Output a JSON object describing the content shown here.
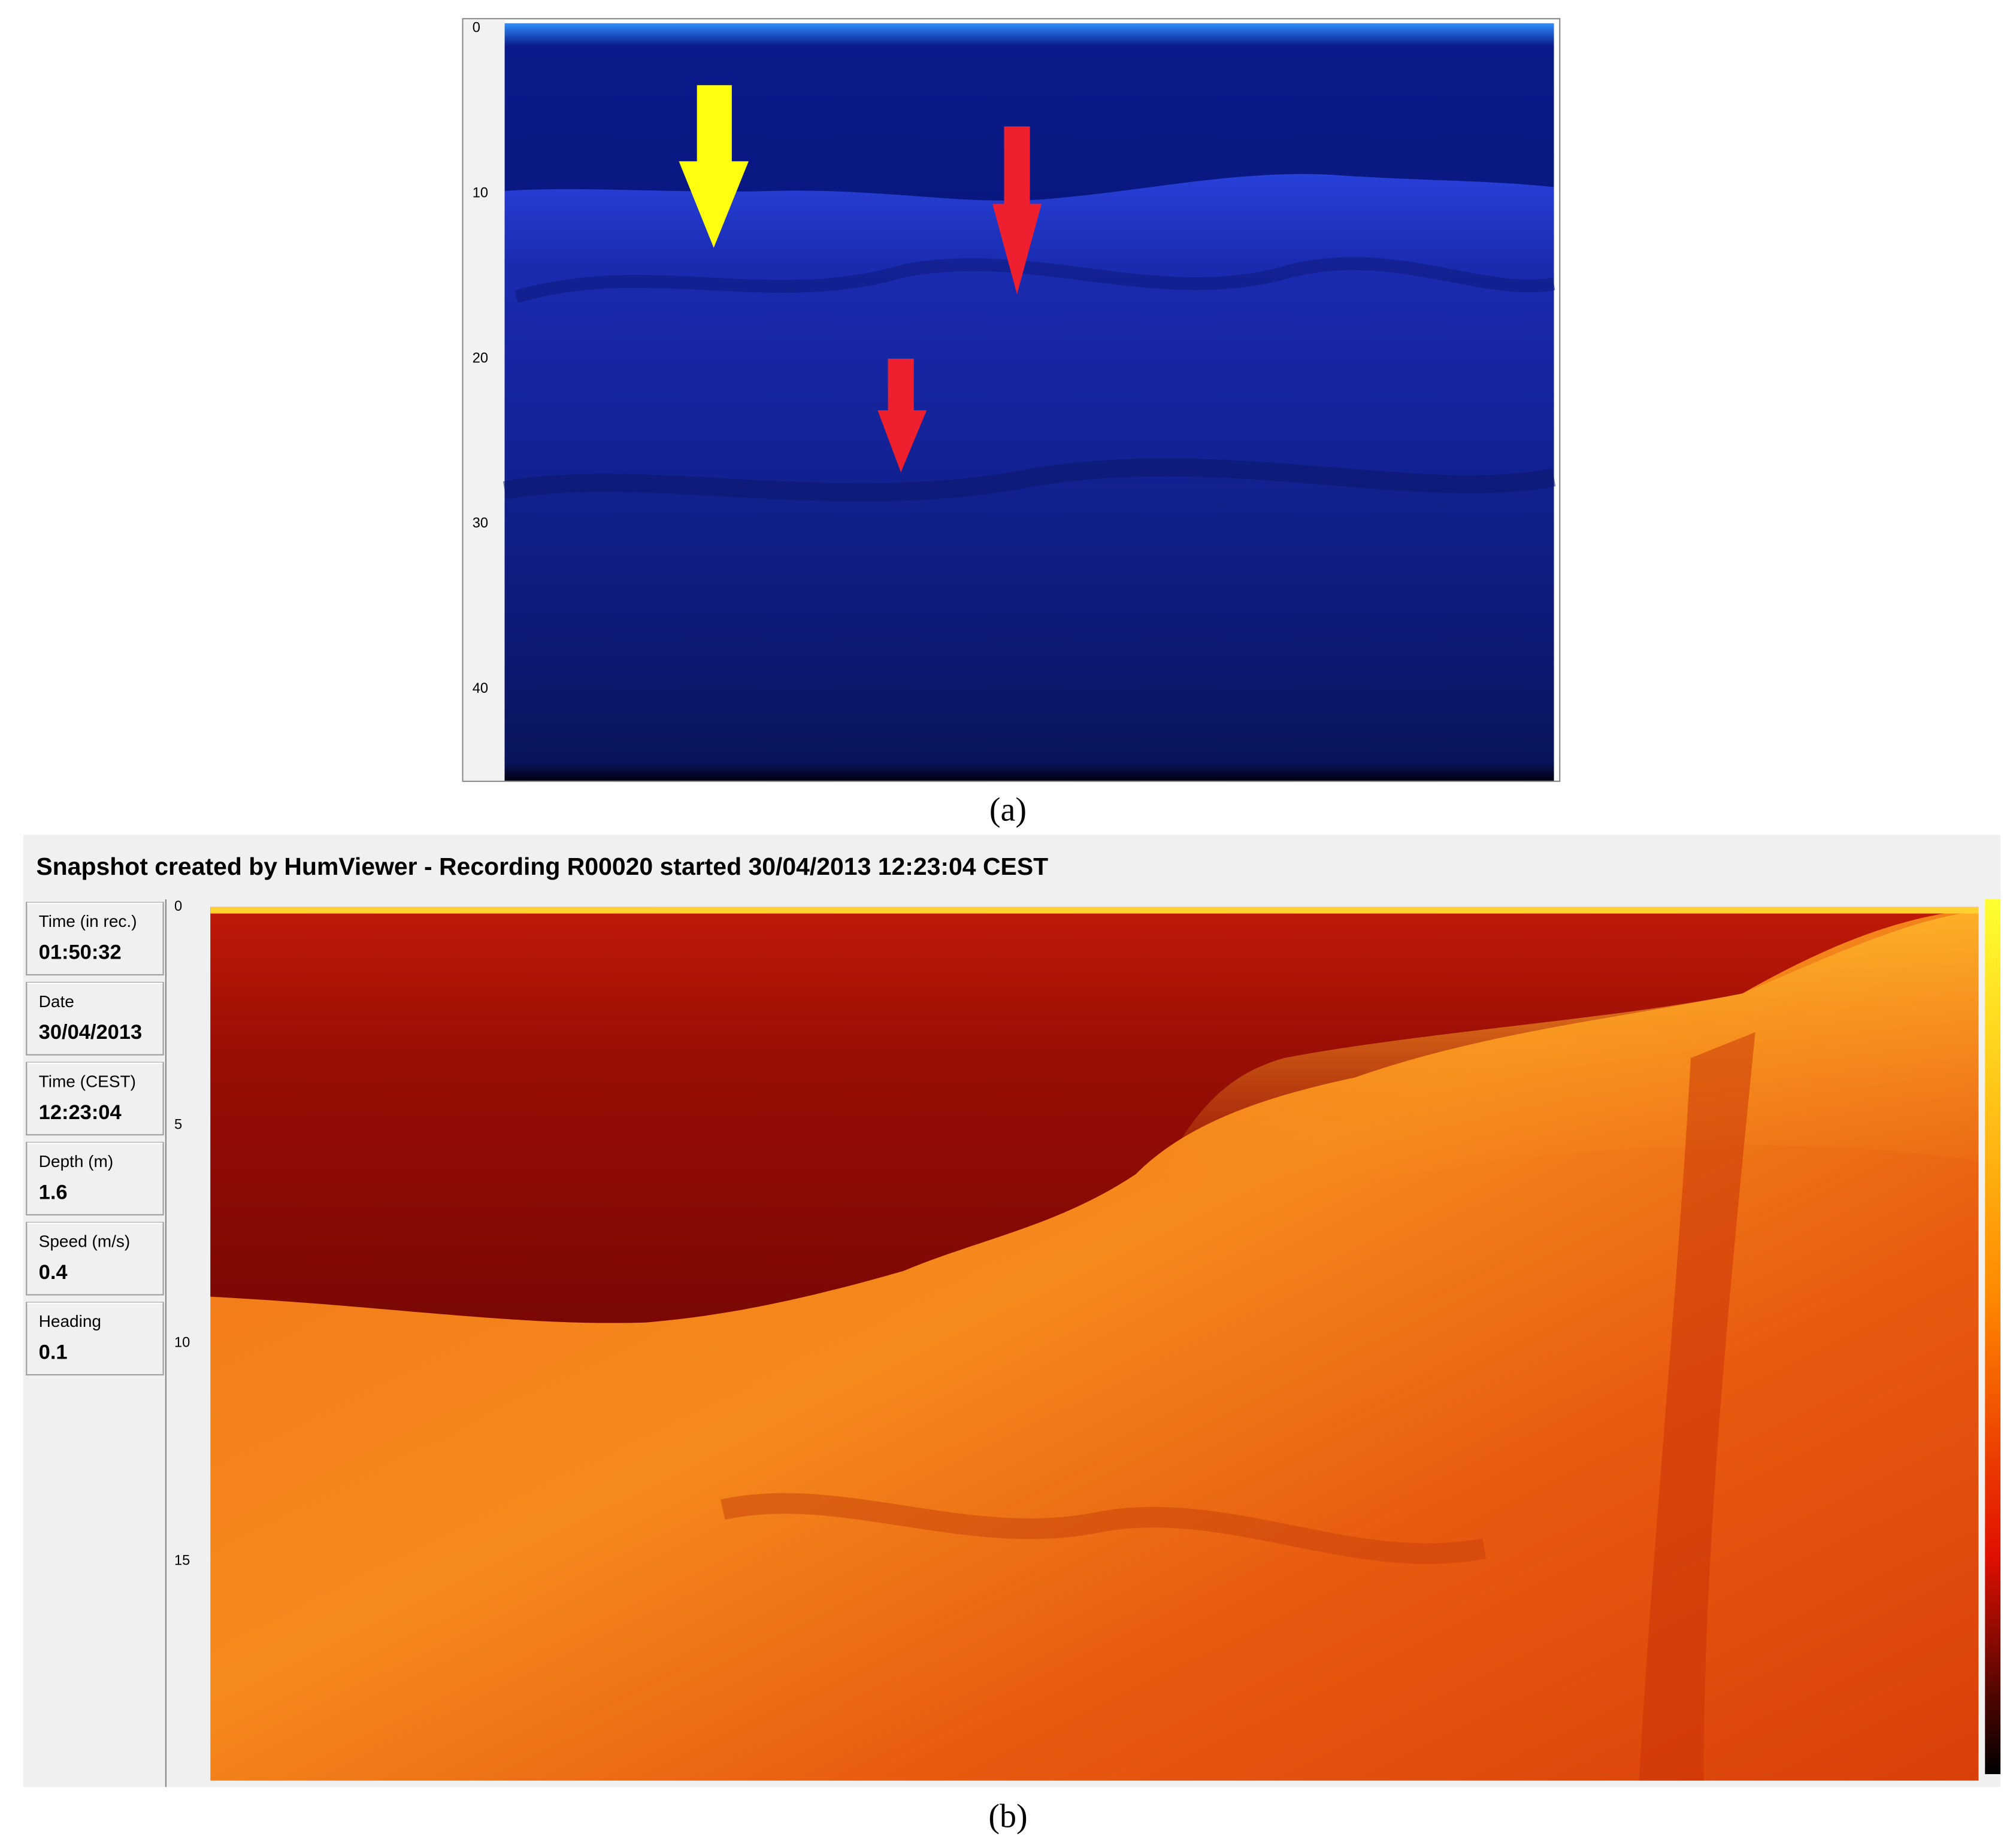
{
  "panel_a": {
    "depth_ticks": [
      "0",
      "10",
      "20",
      "30",
      "40"
    ],
    "caption": "(a)"
  },
  "panel_b": {
    "title": "Snapshot created by HumViewer - Recording R00020 started 30/04/2013 12:23:04 CEST",
    "fields": [
      {
        "label": "Time (in rec.)",
        "value": "01:50:32"
      },
      {
        "label": "Date",
        "value": "30/04/2013"
      },
      {
        "label": "Time (CEST)",
        "value": "12:23:04"
      },
      {
        "label": "Depth (m)",
        "value": "1.6"
      },
      {
        "label": "Speed (m/s)",
        "value": "0.4"
      },
      {
        "label": "Heading",
        "value": "0.1"
      }
    ],
    "depth_ticks": [
      "0",
      "5",
      "10",
      "15"
    ],
    "caption": "(b)"
  }
}
